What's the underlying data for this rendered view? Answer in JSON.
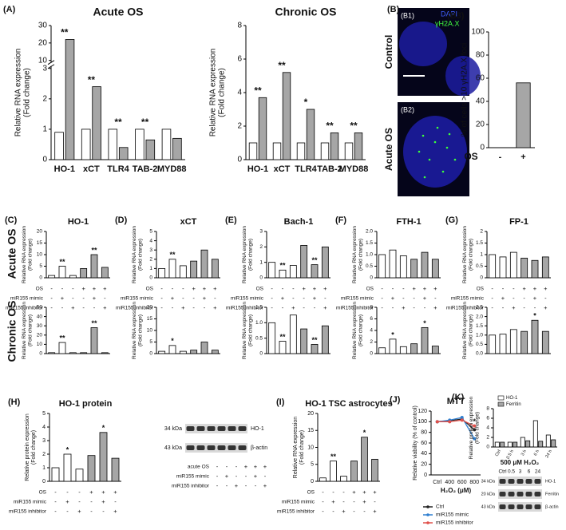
{
  "chart_data": [
    {
      "type": "bar",
      "panel": "(A)",
      "title": "Acute OS",
      "ylabel": [
        "Relative RNA expression",
        "(Fold change)"
      ],
      "categories": [
        "HO-1",
        "xCT",
        "TLR4",
        "TAB-2",
        "MYD88"
      ],
      "series": [
        {
          "color": "#ffffff",
          "values": [
            0.9,
            1,
            1,
            1,
            1
          ]
        },
        {
          "color": "#a6a6a6",
          "values": [
            22,
            2.4,
            0.4,
            0.65,
            0.7
          ]
        }
      ],
      "annotations": [
        "**",
        "**",
        "**",
        "**",
        null
      ],
      "ylim": [
        0,
        30
      ],
      "yticks": [
        0,
        1,
        2,
        3,
        10,
        20,
        30
      ],
      "ybreak": [
        3,
        10
      ]
    },
    {
      "type": "bar",
      "title": "Chronic OS",
      "ylabel": [
        "Relative RNA expression",
        "(Fold change)"
      ],
      "categories": [
        "HO-1",
        "xCT",
        "TLR4",
        "TAB-2",
        "MYD88"
      ],
      "series": [
        {
          "color": "#ffffff",
          "values": [
            1,
            1,
            1,
            1,
            1
          ]
        },
        {
          "color": "#a6a6a6",
          "values": [
            3.7,
            5.2,
            3.0,
            1.6,
            1.6
          ]
        }
      ],
      "annotations": [
        "**",
        "**",
        "*",
        "**",
        "**"
      ],
      "ylim": [
        0,
        8
      ],
      "yticks": [
        0,
        2,
        4,
        6,
        8
      ]
    },
    {
      "type": "bar",
      "panel": "(B3)",
      "ylabel": [
        "% of cells >10 γH2A.X foci"
      ],
      "xlabel": "OS",
      "categories": [
        "-",
        "+"
      ],
      "values": [
        0,
        56
      ],
      "colors": [
        "#a6a6a6",
        "#a6a6a6"
      ],
      "ylim": [
        0,
        100
      ],
      "yticks": [
        0,
        20,
        40,
        60,
        80,
        100
      ]
    },
    {
      "type": "bar",
      "panel": "(C)",
      "title": "HO-1",
      "ylabel": [
        "Relative RNA expression",
        "(Fold change)"
      ],
      "values": [
        1,
        5,
        1,
        4,
        10,
        4.5
      ],
      "colors": [
        "#ffffff",
        "#ffffff",
        "#ffffff",
        "#a6a6a6",
        "#a6a6a6",
        "#a6a6a6"
      ],
      "annotations": [
        null,
        "**",
        null,
        null,
        "**",
        null
      ],
      "ylim": [
        0,
        20
      ],
      "yticks": [
        0,
        5,
        10,
        15,
        20
      ]
    },
    {
      "type": "bar",
      "panel": "(D)",
      "title": "xCT",
      "ylabel": [
        "Relative RNA expression",
        "(Fold change)"
      ],
      "values": [
        1,
        2,
        1.3,
        1.8,
        3,
        2
      ],
      "colors": [
        "#ffffff",
        "#ffffff",
        "#ffffff",
        "#a6a6a6",
        "#a6a6a6",
        "#a6a6a6"
      ],
      "annotations": [
        null,
        "**",
        null,
        null,
        null,
        null
      ],
      "ylim": [
        0,
        5
      ],
      "yticks": [
        0,
        1,
        2,
        3,
        4,
        5
      ]
    },
    {
      "type": "bar",
      "panel": "(E)",
      "title": "Bach-1",
      "ylabel": [
        "Relative RNA expression",
        "(Fold change)"
      ],
      "values": [
        1,
        0.5,
        0.8,
        2.1,
        0.85,
        2
      ],
      "colors": [
        "#ffffff",
        "#ffffff",
        "#ffffff",
        "#a6a6a6",
        "#a6a6a6",
        "#a6a6a6"
      ],
      "annotations": [
        null,
        "**",
        null,
        null,
        "**",
        null
      ],
      "ylim": [
        0,
        3
      ],
      "yticks": [
        0,
        1,
        2,
        3
      ]
    },
    {
      "type": "bar",
      "panel": "(F)",
      "title": "FTH-1",
      "ylabel": [
        "Relative RNA expression",
        "(Fold change)"
      ],
      "values": [
        1,
        1.2,
        0.95,
        0.8,
        1.1,
        0.8
      ],
      "colors": [
        "#ffffff",
        "#ffffff",
        "#ffffff",
        "#a6a6a6",
        "#a6a6a6",
        "#a6a6a6"
      ],
      "ylim": [
        0,
        2
      ],
      "yticks": [
        0,
        0.5,
        {
          "value": 1,
          "label": "1.0"
        },
        1.5,
        {
          "value": 2,
          "label": "2.0"
        }
      ]
    },
    {
      "type": "bar",
      "panel": "(G)",
      "title": "FP-1",
      "ylabel": [
        "Relative RNA expression",
        "(Fold change)"
      ],
      "values": [
        1,
        0.9,
        1.1,
        0.85,
        0.75,
        0.9
      ],
      "colors": [
        "#ffffff",
        "#ffffff",
        "#ffffff",
        "#a6a6a6",
        "#a6a6a6",
        "#a6a6a6"
      ],
      "ylim": [
        0,
        2
      ],
      "yticks": [
        0,
        0.5,
        1,
        1.5,
        2
      ]
    },
    {
      "type": "bar",
      "ylabel": [
        "Relative RNA expression",
        "(Fold change)"
      ],
      "values": [
        1,
        12,
        1,
        1,
        28,
        1
      ],
      "colors": [
        "#ffffff",
        "#ffffff",
        "#ffffff",
        "#a6a6a6",
        "#a6a6a6",
        "#a6a6a6"
      ],
      "annotations": [
        null,
        "**",
        null,
        null,
        "**",
        null
      ],
      "ylim": [
        0,
        50
      ],
      "yticks": [
        0,
        10,
        20,
        30,
        40,
        50
      ]
    },
    {
      "type": "bar",
      "ylabel": [
        "Relative RNA expression",
        "(Fold change)"
      ],
      "values": [
        1,
        3.5,
        1,
        1.5,
        5,
        1.5
      ],
      "colors": [
        "#ffffff",
        "#ffffff",
        "#ffffff",
        "#a6a6a6",
        "#a6a6a6",
        "#a6a6a6"
      ],
      "annotations": [
        null,
        "*",
        null,
        null,
        null,
        null
      ],
      "ylim": [
        0,
        20
      ],
      "yticks": [
        0,
        5,
        10,
        15,
        20
      ]
    },
    {
      "type": "bar",
      "ylabel": [
        "Relative RNA expression",
        "(Fold change)"
      ],
      "values": [
        1,
        0.4,
        1.25,
        0.8,
        0.3,
        0.9
      ],
      "colors": [
        "#ffffff",
        "#ffffff",
        "#ffffff",
        "#a6a6a6",
        "#a6a6a6",
        "#a6a6a6"
      ],
      "annotations": [
        null,
        "**",
        null,
        null,
        "**",
        null
      ],
      "ylim": [
        0,
        1.5
      ],
      "yticks": [
        0,
        0.5,
        {
          "value": 1,
          "label": "1.0"
        },
        1.5
      ]
    },
    {
      "type": "bar",
      "ylabel": [
        "Relative RNA expression",
        "(Fold change)"
      ],
      "values": [
        1,
        2.5,
        1.2,
        1.7,
        4.5,
        1.3
      ],
      "colors": [
        "#ffffff",
        "#ffffff",
        "#ffffff",
        "#a6a6a6",
        "#a6a6a6",
        "#a6a6a6"
      ],
      "annotations": [
        null,
        "*",
        null,
        null,
        "*",
        null
      ],
      "ylim": [
        0,
        8
      ],
      "yticks": [
        0,
        2,
        4,
        6,
        8
      ]
    },
    {
      "type": "bar",
      "ylabel": [
        "Relative RNA expression",
        "(Fold change)"
      ],
      "values": [
        1,
        1.05,
        1.3,
        1.2,
        1.8,
        1.2
      ],
      "colors": [
        "#ffffff",
        "#ffffff",
        "#ffffff",
        "#a6a6a6",
        "#a6a6a6",
        "#a6a6a6"
      ],
      "annotations": [
        null,
        null,
        null,
        null,
        "*",
        null
      ],
      "ylim": [
        0,
        2.5
      ],
      "yticks": [
        {
          "value": 0,
          "label": "0.0"
        },
        0.5,
        {
          "value": 1,
          "label": "1.0"
        },
        1.5,
        {
          "value": 2,
          "label": "2.0"
        },
        2.5
      ]
    },
    {
      "type": "bar",
      "panel": "(H)",
      "title": "HO-1 protein",
      "ylabel": [
        "Relative protein expression",
        "(Fold change)"
      ],
      "values": [
        1,
        2,
        0.9,
        1.9,
        3.6,
        1.7
      ],
      "colors": [
        "#ffffff",
        "#ffffff",
        "#ffffff",
        "#a6a6a6",
        "#a6a6a6",
        "#a6a6a6"
      ],
      "annotations": [
        null,
        "*",
        null,
        null,
        "*",
        null
      ],
      "ylim": [
        0,
        5
      ],
      "yticks": [
        0,
        1,
        2,
        3,
        4,
        5
      ]
    },
    {
      "type": "bar",
      "panel": "(I)",
      "title": "HO-1 TSC astrocytes",
      "ylabel": [
        "Relative RNA expression",
        "(Fold change)"
      ],
      "values": [
        1,
        6,
        1.5,
        6,
        13,
        6.5
      ],
      "colors": [
        "#ffffff",
        "#ffffff",
        "#ffffff",
        "#a6a6a6",
        "#a6a6a6",
        "#a6a6a6"
      ],
      "annotations": [
        null,
        "**",
        null,
        null,
        "*",
        null
      ],
      "ylim": [
        0,
        20
      ],
      "yticks": [
        0,
        5,
        10,
        15,
        20
      ]
    },
    {
      "type": "line",
      "panel": "(J)",
      "title": "MTT",
      "ylabel": [
        "Relative viability (% of control)"
      ],
      "xlabel": "H₂O₂ (μM)",
      "categories": [
        "Ctrl",
        "400",
        "600",
        "800"
      ],
      "series": [
        {
          "name": "Ctrl",
          "color": "#222222",
          "values": [
            100,
            102,
            105,
            85
          ]
        },
        {
          "name": "miR155 mimic",
          "color": "#2f7fd0",
          "values": [
            100,
            103,
            108,
            68
          ]
        },
        {
          "name": "miR155 inhibitor",
          "color": "#e0504a",
          "values": [
            100,
            100,
            103,
            92
          ]
        }
      ],
      "annotations": [
        null,
        null,
        null,
        "*"
      ],
      "ylim": [
        0,
        120
      ],
      "yticks": [
        0,
        20,
        40,
        60,
        80,
        100,
        120
      ]
    },
    {
      "type": "bar",
      "panel": "(K)",
      "ylabel": [
        "Relative protein expression",
        "(Fold change)"
      ],
      "categories": [
        "Ctrl",
        "0.5 h",
        "3 h",
        "6 h",
        "24 h"
      ],
      "series": [
        {
          "name": "HO-1",
          "color": "#ffffff",
          "values": [
            1,
            1,
            2,
            5.5,
            2.5
          ]
        },
        {
          "name": "Ferritin",
          "color": "#a6a6a6",
          "values": [
            1,
            1,
            1.3,
            1.2,
            1.5
          ]
        }
      ],
      "ylim": [
        0,
        8
      ],
      "yticks": [
        0,
        2,
        4,
        6,
        8
      ]
    }
  ],
  "rows": [
    "Acute OS",
    "Chronic OS"
  ],
  "conditions": [
    {
      "name": "OS",
      "marks": [
        "-",
        "-",
        "-",
        "+",
        "+",
        "+"
      ]
    },
    {
      "name": "miR155 mimic",
      "marks": [
        "-",
        "+",
        "-",
        "-",
        "+",
        "-"
      ]
    },
    {
      "name": "miR155 inhibitor",
      "marks": [
        "-",
        "-",
        "+",
        "-",
        "-",
        "+"
      ]
    }
  ],
  "blot_conditions": [
    {
      "name": "acute OS",
      "marks": [
        "-",
        "-",
        "-",
        "+",
        "+",
        "+"
      ]
    },
    {
      "name": "miR155 mimic",
      "marks": [
        "-",
        "+",
        "-",
        "-",
        "+",
        "-"
      ]
    },
    {
      "name": "miR155 inhibitor",
      "marks": [
        "-",
        "-",
        "+",
        "-",
        "-",
        "+"
      ]
    }
  ],
  "blots": [
    {
      "rows": [
        {
          "size": "34 kDa",
          "name": "HO-1"
        },
        {
          "size": "43 kDa",
          "name": "β-actin"
        }
      ]
    },
    {
      "treatment": "500 μM H₂O₂",
      "lanes": [
        "Ctrl",
        "0.5",
        "3",
        "6",
        "24"
      ],
      "rows": [
        {
          "size": "34 kDa",
          "name": "HO-1"
        },
        {
          "size": "20 kDa",
          "name": "Ferritin"
        },
        {
          "size": "43 kDa",
          "name": "β-actin"
        }
      ]
    }
  ],
  "images": {
    "panel": "(B)",
    "items": [
      {
        "panel": "(B1)",
        "row": "Control",
        "stains": [
          "DAPI",
          "γH2A.X"
        ]
      },
      {
        "panel": "(B2)",
        "row": "Acute OS"
      }
    ]
  }
}
